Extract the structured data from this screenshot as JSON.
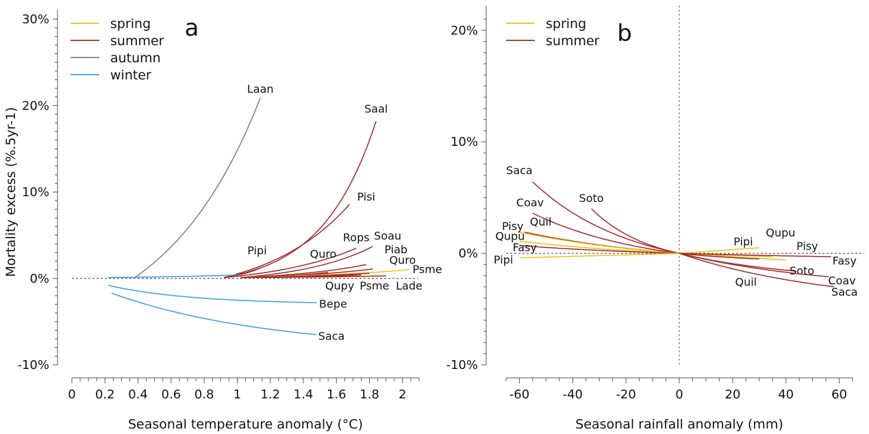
{
  "colors": {
    "spring": "#e8c21a",
    "summer": "#a3282b",
    "autumn": "#8b7d6b",
    "winter": "#3a9ee0"
  },
  "chart_data": [
    {
      "type": "line",
      "panel_label": "a",
      "ylabel": "Mortality excess (%.5yr-1)",
      "xlabel": "Seasonal temperature anomaly (°C)",
      "xlim": [
        0,
        2.1
      ],
      "ylim": [
        -10,
        30
      ],
      "xticks": [
        0,
        0.2,
        0.4,
        0.6,
        0.8,
        1,
        1.2,
        1.4,
        1.6,
        1.8,
        2
      ],
      "xtick_labels": [
        "0",
        "0.2",
        "0.4",
        "0.6",
        "0.8",
        "1",
        "1.2",
        "1.4",
        "1.6",
        "1.8",
        "2"
      ],
      "yticks": [
        -10,
        0,
        10,
        20,
        30
      ],
      "ytick_labels": [
        "-10%",
        "0%",
        "10%",
        "20%",
        "30%"
      ],
      "legend": {
        "position": "top-left",
        "entries": [
          {
            "label": "spring",
            "season": "spring"
          },
          {
            "label": "summer",
            "season": "summer"
          },
          {
            "label": "autumn",
            "season": "autumn"
          },
          {
            "label": "winter",
            "season": "winter"
          }
        ]
      },
      "series": [
        {
          "name": "Laan",
          "season": "autumn",
          "x_start": 0.38,
          "x_end": 1.14,
          "y_end": 20.9,
          "curve": 1.3,
          "label_x": 1.14,
          "label_y": 21.5,
          "label_anchor": "middle"
        },
        {
          "name": "Saal",
          "season": "summer",
          "x_start": 0.92,
          "x_end": 1.84,
          "y_end": 18.2,
          "curve": 2.8,
          "label_x": 1.84,
          "label_y": 19.2,
          "label_anchor": "middle"
        },
        {
          "name": "Pisi",
          "season": "summer",
          "x_start": 0.92,
          "x_end": 1.68,
          "y_end": 8.6,
          "curve": 1.5,
          "label_x": 1.78,
          "label_y": 9.0,
          "label_anchor": "middle"
        },
        {
          "name": "Pipi",
          "season": "summer",
          "x_start": 0.92,
          "x_end": 1.15,
          "y_end": 1.3,
          "curve": 1.2,
          "label_x": 1.12,
          "label_y": 2.8,
          "label_anchor": "middle"
        },
        {
          "name": "Rops",
          "season": "summer",
          "x_start": 0.92,
          "x_end": 1.72,
          "y_end": 3.5,
          "curve": 1.5,
          "label_x": 1.72,
          "label_y": 4.3,
          "label_anchor": "middle"
        },
        {
          "name": "Soau",
          "season": "summer",
          "x_start": 1.02,
          "x_end": 1.82,
          "y_end": 3.7,
          "curve": 1.8,
          "label_x": 1.91,
          "label_y": 4.5,
          "label_anchor": "middle"
        },
        {
          "name": "Quro",
          "season": "summer",
          "x_start": 1.02,
          "x_end": 1.55,
          "y_end": 0.7,
          "curve": 1.5,
          "label_x": 1.52,
          "label_y": 2.4,
          "label_anchor": "middle"
        },
        {
          "name": "Piab",
          "season": "summer",
          "x_start": 1.02,
          "x_end": 1.78,
          "y_end": 1.6,
          "curve": 1.5,
          "label_x": 1.96,
          "label_y": 2.9,
          "label_anchor": "middle"
        },
        {
          "name": "Quro",
          "season": "summer",
          "x_start": 1.02,
          "x_end": 1.82,
          "y_end": 1.1,
          "curve": 1.5,
          "label_x": 2.0,
          "label_y": 1.7,
          "label_anchor": "middle"
        },
        {
          "name": "Psme",
          "season": "spring",
          "x_start": 1.02,
          "x_end": 2.04,
          "y_end": 1.0,
          "curve": 1.2,
          "label_x": 2.15,
          "label_y": 0.6,
          "label_anchor": "middle"
        },
        {
          "name": "Qupy",
          "season": "summer",
          "x_start": 1.02,
          "x_end": 1.8,
          "y_end": 0.6,
          "curve": 1.5,
          "label_x": 1.62,
          "label_y": -1.3,
          "label_anchor": "middle"
        },
        {
          "name": "Psme",
          "season": "summer",
          "x_start": 1.02,
          "x_end": 1.75,
          "y_end": 0.4,
          "curve": 1.5,
          "label_x": 1.83,
          "label_y": -1.3,
          "label_anchor": "middle"
        },
        {
          "name": "Lade",
          "season": "summer",
          "x_start": 1.02,
          "x_end": 1.9,
          "y_end": 0.3,
          "curve": 1.5,
          "label_x": 2.04,
          "label_y": -1.3,
          "label_anchor": "middle"
        },
        {
          "name": "Bepe",
          "season": "winter",
          "x_start": 0.22,
          "x_end": 1.48,
          "y_start": -0.8,
          "y_end": -2.8,
          "curve": -2.5,
          "label_x": 1.58,
          "label_y": -3.4,
          "label_anchor": "middle"
        },
        {
          "name": "Saca",
          "season": "winter",
          "x_start": 0.24,
          "x_end": 1.48,
          "y_start": -1.7,
          "y_end": -6.5,
          "curve": -1.3,
          "label_x": 1.57,
          "label_y": -7.1,
          "label_anchor": "middle"
        },
        {
          "name": "",
          "season": "winter",
          "x_start": 0.22,
          "x_end": 1.02,
          "y_start": 0.1,
          "y_end": 0.4,
          "curve": 1.0,
          "label_x": null,
          "label_y": null,
          "label_anchor": "middle"
        }
      ]
    },
    {
      "type": "line",
      "panel_label": "b",
      "ylabel": "",
      "xlabel": "Seasonal rainfall anomaly (mm)",
      "xlim": [
        -65,
        65
      ],
      "ylim": [
        -10,
        21
      ],
      "xticks": [
        -60,
        -40,
        -20,
        0,
        20,
        40,
        60
      ],
      "xtick_labels": [
        "-60",
        "-40",
        "-20",
        "0",
        "20",
        "40",
        "60"
      ],
      "yticks": [
        -10,
        0,
        10,
        20
      ],
      "ytick_labels": [
        "-10%",
        "0%",
        "10%",
        "20%"
      ],
      "legend": {
        "position": "top-left",
        "entries": [
          {
            "label": "spring",
            "season": "spring"
          },
          {
            "label": "summer",
            "season": "summer"
          }
        ]
      },
      "series": [
        {
          "name": "Saca",
          "season": "summer",
          "x_start": -55,
          "y_start": 6.4,
          "curve": -1.5,
          "label_x": -60,
          "label_y": 7.1,
          "label_anchor": "middle"
        },
        {
          "name": "Soto",
          "season": "summer",
          "x_start": -33,
          "y_start": 4.0,
          "curve": -1.5,
          "label_x": -33,
          "label_y": 4.6,
          "label_anchor": "middle"
        },
        {
          "name": "Coav",
          "season": "summer",
          "x_start": -55,
          "y_start": 3.6,
          "curve": -1.3,
          "label_x": -56,
          "label_y": 4.2,
          "label_anchor": "middle"
        },
        {
          "name": "Quil",
          "season": "summer",
          "x_start": -58,
          "y_start": 1.9,
          "curve": -1.0,
          "label_x": -52,
          "label_y": 2.5,
          "label_anchor": "middle"
        },
        {
          "name": "Pisy",
          "season": "spring",
          "x_start": -60,
          "y_start": 1.9,
          "curve": -1.0,
          "label_x": -62.5,
          "label_y": 2.1,
          "label_anchor": "middle"
        },
        {
          "name": "Qupu",
          "season": "spring",
          "x_start": -60,
          "y_start": 1.1,
          "curve": -1.0,
          "label_x": -63.5,
          "label_y": 1.2,
          "label_anchor": "middle"
        },
        {
          "name": "Fasy",
          "season": "summer",
          "x_start": -60,
          "y_start": 0.7,
          "curve": -1.0,
          "label_x": -58,
          "label_y": 0.2,
          "label_anchor": "middle"
        },
        {
          "name": "Pipi",
          "season": "spring",
          "x_start": -60,
          "y_start": -0.4,
          "curve": 0,
          "label_x": -66,
          "label_y": -0.9,
          "label_anchor": "middle"
        },
        {
          "name": "Pipi",
          "season": "spring",
          "x_start": 30,
          "y_start": 0.5,
          "curve": 0,
          "label_x": 24,
          "label_y": 0.7,
          "label_anchor": "middle"
        },
        {
          "name": "Qupu",
          "season": "spring",
          "x_start": 35,
          "y_start": -0.3,
          "curve": 0,
          "label_x": 38,
          "label_y": 1.5,
          "label_anchor": "middle"
        },
        {
          "name": "Pisy",
          "season": "spring",
          "x_start": 40,
          "y_start": -0.6,
          "curve": 0,
          "label_x": 48,
          "label_y": 0.3,
          "label_anchor": "middle"
        },
        {
          "name": "Fasy",
          "season": "summer",
          "x_start": 57,
          "y_start": -0.3,
          "curve": 0.5,
          "label_x": 62,
          "label_y": -1.0,
          "label_anchor": "middle"
        },
        {
          "name": "Quil",
          "season": "summer",
          "x_start": 30,
          "y_start": -0.5,
          "curve": 1.0,
          "label_x": 25,
          "label_y": -2.9,
          "label_anchor": "middle"
        },
        {
          "name": "Soto",
          "season": "summer",
          "x_start": 44,
          "y_start": -1.6,
          "curve": 1.0,
          "label_x": 46,
          "label_y": -1.9,
          "label_anchor": "middle"
        },
        {
          "name": "Coav",
          "season": "summer",
          "x_start": 56,
          "y_start": -2.1,
          "curve": 1.0,
          "label_x": 61,
          "label_y": -2.8,
          "label_anchor": "middle"
        },
        {
          "name": "Saca",
          "season": "summer",
          "x_start": 58,
          "y_start": -3.0,
          "curve": 1.0,
          "label_x": 62,
          "label_y": -3.8,
          "label_anchor": "middle"
        }
      ]
    }
  ]
}
